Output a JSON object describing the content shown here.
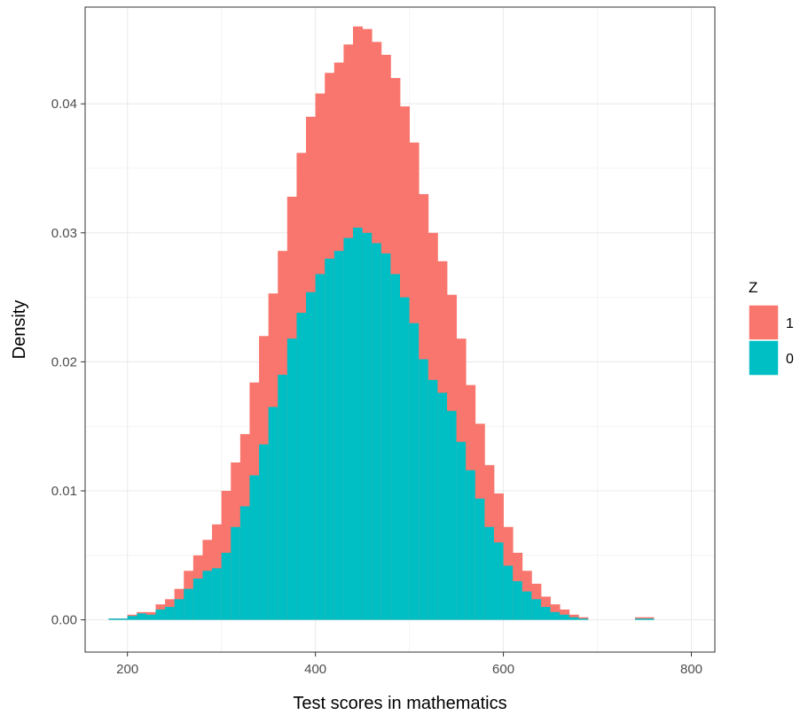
{
  "chart_data": {
    "type": "histogram",
    "xlabel": "Test scores in mathematics",
    "ylabel": "Density",
    "xlim": [
      155,
      825
    ],
    "ylim": [
      -0.0025,
      0.0475
    ],
    "x_ticks": [
      200,
      400,
      600,
      800
    ],
    "x_tick_labels": [
      "200",
      "400",
      "600",
      "800"
    ],
    "y_ticks": [
      0.0,
      0.01,
      0.02,
      0.03,
      0.04
    ],
    "y_tick_labels": [
      "0.00",
      "0.01",
      "0.02",
      "0.03",
      "0.04"
    ],
    "grid": true,
    "stacked": true,
    "bin_start": 180,
    "bin_width": 10,
    "legend": {
      "title": "Z",
      "position": "right"
    },
    "series": [
      {
        "name": "0",
        "color": "#00BFC4",
        "values": [
          0.0001,
          0.0001,
          0.0003,
          0.0005,
          0.0004,
          0.0008,
          0.001,
          0.0016,
          0.0024,
          0.0032,
          0.0038,
          0.004,
          0.0052,
          0.0072,
          0.0088,
          0.0112,
          0.0136,
          0.0165,
          0.019,
          0.0218,
          0.0238,
          0.0254,
          0.0268,
          0.028,
          0.0286,
          0.0296,
          0.0304,
          0.03,
          0.0292,
          0.0284,
          0.0268,
          0.025,
          0.023,
          0.0202,
          0.0186,
          0.0176,
          0.0162,
          0.0138,
          0.0116,
          0.0094,
          0.0072,
          0.006,
          0.0042,
          0.003,
          0.0022,
          0.0016,
          0.001,
          0.0006,
          0.0004,
          0.0002,
          0.0001,
          0.0,
          0.0,
          0.0,
          0.0,
          0.0,
          0.0001,
          0.0001,
          0.0,
          0.0
        ]
      },
      {
        "name": "1",
        "color": "#F8766D",
        "values": [
          0.0,
          0.0,
          0.0001,
          0.0001,
          0.0002,
          0.0004,
          0.0006,
          0.0008,
          0.0014,
          0.0018,
          0.0024,
          0.0034,
          0.0048,
          0.005,
          0.0056,
          0.0072,
          0.0084,
          0.0088,
          0.0096,
          0.011,
          0.0124,
          0.0136,
          0.014,
          0.0144,
          0.0146,
          0.015,
          0.0156,
          0.0158,
          0.0156,
          0.0154,
          0.0152,
          0.0148,
          0.014,
          0.0128,
          0.0114,
          0.0102,
          0.009,
          0.008,
          0.0066,
          0.0058,
          0.0048,
          0.0038,
          0.003,
          0.0022,
          0.0016,
          0.0012,
          0.0008,
          0.0006,
          0.0004,
          0.0002,
          0.0001,
          0.0,
          0.0,
          0.0,
          0.0,
          0.0,
          0.0001,
          0.0001,
          0.0,
          0.0
        ]
      }
    ]
  }
}
